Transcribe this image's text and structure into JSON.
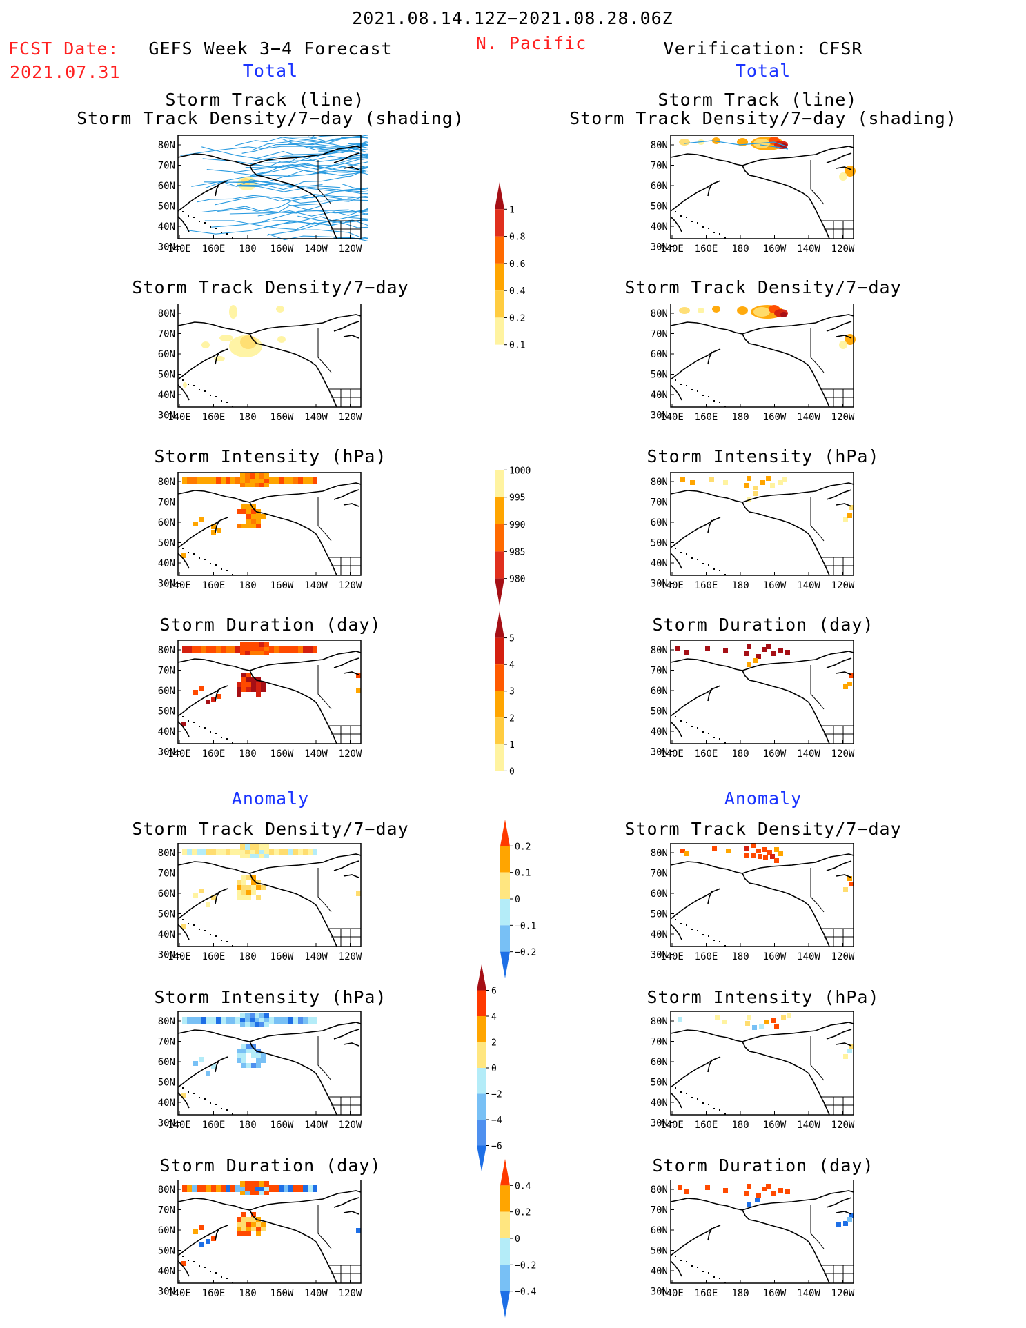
{
  "header": {
    "date_range": "2021.08.14.12Z−2021.08.28.06Z",
    "region": "N. Pacific",
    "fcst_label": "FCST Date:",
    "fcst_date": "2021.07.31",
    "left_model": "GEFS Week 3−4 Forecast",
    "right_model": "Verification: CFSR"
  },
  "sections": {
    "total": "Total",
    "anomaly": "Anomaly"
  },
  "axes": {
    "lat_labels": [
      "80N",
      "70N",
      "60N",
      "50N",
      "40N",
      "30N"
    ],
    "lon_labels": [
      "140E",
      "160E",
      "180",
      "160W",
      "140W",
      "120W"
    ]
  },
  "panel_titles": {
    "track_line": "Storm Track (line)",
    "track_shading": "Storm Track Density/7−day (shading)",
    "density": "Storm Track Density/7−day",
    "intensity": "Storm Intensity (hPa)",
    "duration": "Storm Duration (day)"
  },
  "colorbars": [
    {
      "labels": [
        "1",
        "0.8",
        "0.6",
        "0.4",
        "0.2",
        "0.1"
      ],
      "colors": [
        "#a50f15",
        "#e0301e",
        "#ff6a00",
        "#ffa500",
        "#ffcc40",
        "#fff3a0",
        "#ffffff"
      ]
    },
    {
      "labels": [
        "1000",
        "995",
        "990",
        "985",
        "980"
      ],
      "colors": [
        "#ffffff",
        "#fff3a0",
        "#ffa500",
        "#ff6a00",
        "#e0301e",
        "#a50f15"
      ]
    },
    {
      "labels": [
        "5",
        "4",
        "3",
        "2",
        "1",
        "0"
      ],
      "colors": [
        "#a50f15",
        "#d42010",
        "#ff5a00",
        "#ffa500",
        "#ffcc40",
        "#fff3a0",
        "#ffffff"
      ]
    },
    {
      "labels": [
        "0.2",
        "0.1",
        "0",
        "−0.1",
        "−0.2"
      ],
      "colors": [
        "#ff3a00",
        "#ffa500",
        "#ffe680",
        "#b4ecf8",
        "#78c0f5",
        "#1e6fe6"
      ]
    },
    {
      "labels": [
        "6",
        "4",
        "2",
        "0",
        "−2",
        "−4",
        "−6"
      ],
      "colors": [
        "#a50f15",
        "#ff3a00",
        "#ffa500",
        "#ffe680",
        "#b4ecf8",
        "#78c0f5",
        "#4f90ef",
        "#1e6fe6"
      ]
    },
    {
      "labels": [
        "0.4",
        "0.2",
        "0",
        "−0.2",
        "−0.4"
      ],
      "colors": [
        "#ff3a00",
        "#ffa500",
        "#ffe680",
        "#b4ecf8",
        "#78c0f5",
        "#1e6fe6"
      ]
    }
  ],
  "colors": {
    "title_red": "#ff2020",
    "section_blue": "#1a33ff",
    "track_line": "#2a9be0"
  }
}
